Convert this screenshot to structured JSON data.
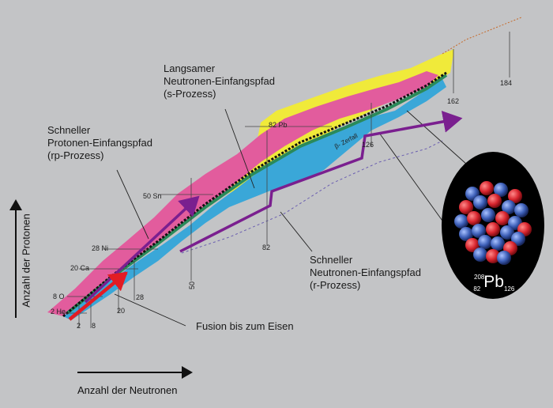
{
  "labels": {
    "s_process": "Langsamer\nNeutronen-Einfangspfad\n(s-Prozess)",
    "rp_process": "Schneller\nProtonen-Einfangspfad\n(rp-Prozess)",
    "r_process": "Schneller\nNeutronen-Einfangspfad\n(r-Prozess)",
    "fusion": "Fusion bis zum Eisen",
    "beta_decay": "β- Zerfall"
  },
  "axes": {
    "y_label": "Anzahl der Protonen",
    "x_label": "Anzahl der Neutronen"
  },
  "element_labels": [
    "2 He",
    "8 O",
    "20 Ca",
    "28 Ni",
    "50 Sn",
    "82 Pb"
  ],
  "magic_numbers": [
    "2",
    "8",
    "20",
    "28",
    "50",
    "82",
    "126",
    "162",
    "184"
  ],
  "nucleus": {
    "symbol": "Pb",
    "mass": "208",
    "z": "82",
    "n": "126"
  },
  "colors": {
    "background": "#c3c4c6",
    "stable": "#111111",
    "neutron_rich": "#3aa7d8",
    "proton_rich": "#e25c9d",
    "unknown": "#f0ea3a",
    "path": "#7a1f8f",
    "fusion_arrow": "#e21c24",
    "nucleus_bg": "#000000",
    "proton_ball": "#d8262f",
    "neutron_ball": "#3d5fb8"
  }
}
